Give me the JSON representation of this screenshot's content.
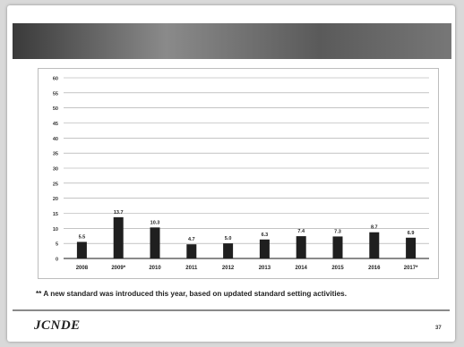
{
  "slide": {
    "title": "",
    "footnote": "** A new standard was introduced this year, based on updated standard setting activities.",
    "footer": {
      "logo": "JCNDE",
      "logo_subtitle": "",
      "copyright": "",
      "page_number": "37"
    }
  },
  "chart_data": {
    "type": "bar",
    "title": "",
    "xlabel": "",
    "ylabel": "",
    "ylim": [
      0,
      60
    ],
    "yticks": [
      0,
      5,
      10,
      15,
      20,
      25,
      30,
      35,
      40,
      45,
      50,
      55,
      60
    ],
    "grid": true,
    "categories": [
      "2008",
      "2009*",
      "2010",
      "2011",
      "2012",
      "2013",
      "2014",
      "2015",
      "2016",
      "2017*"
    ],
    "values": [
      5.5,
      13.7,
      10.3,
      4.7,
      5.0,
      6.3,
      7.4,
      7.3,
      8.7,
      6.9
    ],
    "data_labels": [
      "5.5",
      "13.7",
      "10.3",
      "4.7",
      "5.0",
      "6.3",
      "7.4",
      "7.3",
      "8.7",
      "6.9"
    ],
    "bar_color": "#1f1f1f"
  },
  "colors": {
    "banner_dark": "#3a3a3a",
    "banner_light": "#8a8a8a",
    "gridline": "#a0a0a0"
  }
}
